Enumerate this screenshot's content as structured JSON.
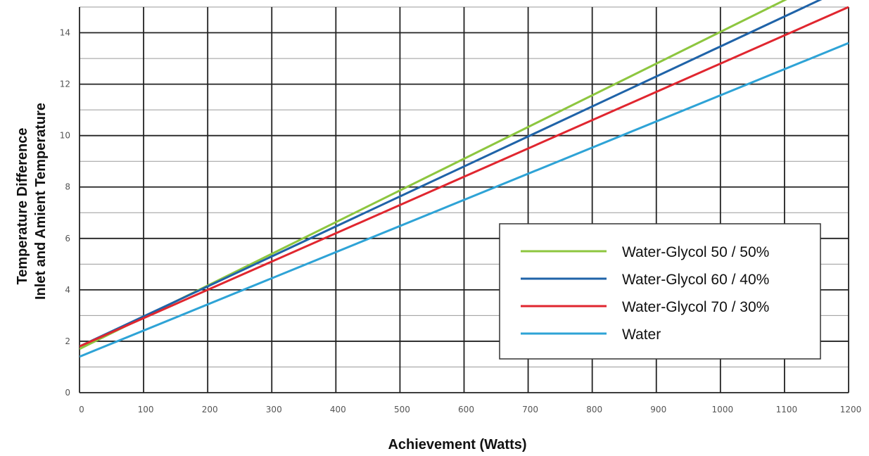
{
  "chart_data": {
    "type": "line",
    "title": "",
    "xlabel": "Achievement (Watts)",
    "ylabel": [
      "Temperature Difference",
      "Inlet and Amient Temperature"
    ],
    "xlim": [
      0,
      1200
    ],
    "ylim": [
      0,
      15
    ],
    "x_ticks": [
      "0",
      "100",
      "200",
      "300",
      "400",
      "500",
      "600",
      "700",
      "800",
      "900",
      "1000",
      "1100",
      "1200"
    ],
    "y_ticks": [
      "0",
      "2",
      "4",
      "6",
      "8",
      "10",
      "12",
      "14"
    ],
    "major_grid": true,
    "minor_grid_y": true,
    "legend_position": "bottom-right",
    "series": [
      {
        "name": "Water-Glycol 50 / 50%",
        "color": "#8dc63f",
        "x": [
          0,
          1200
        ],
        "y": [
          1.7,
          16.5
        ]
      },
      {
        "name": "Water-Glycol 60 / 40%",
        "color": "#1f63a8",
        "x": [
          0,
          1200
        ],
        "y": [
          1.8,
          15.8
        ]
      },
      {
        "name": "Water-Glycol 70 / 30%",
        "color": "#e0262f",
        "x": [
          0,
          1200
        ],
        "y": [
          1.8,
          15.0
        ]
      },
      {
        "name": "Water",
        "color": "#2ea3d6",
        "x": [
          0,
          1200
        ],
        "y": [
          1.4,
          13.6
        ]
      }
    ]
  }
}
